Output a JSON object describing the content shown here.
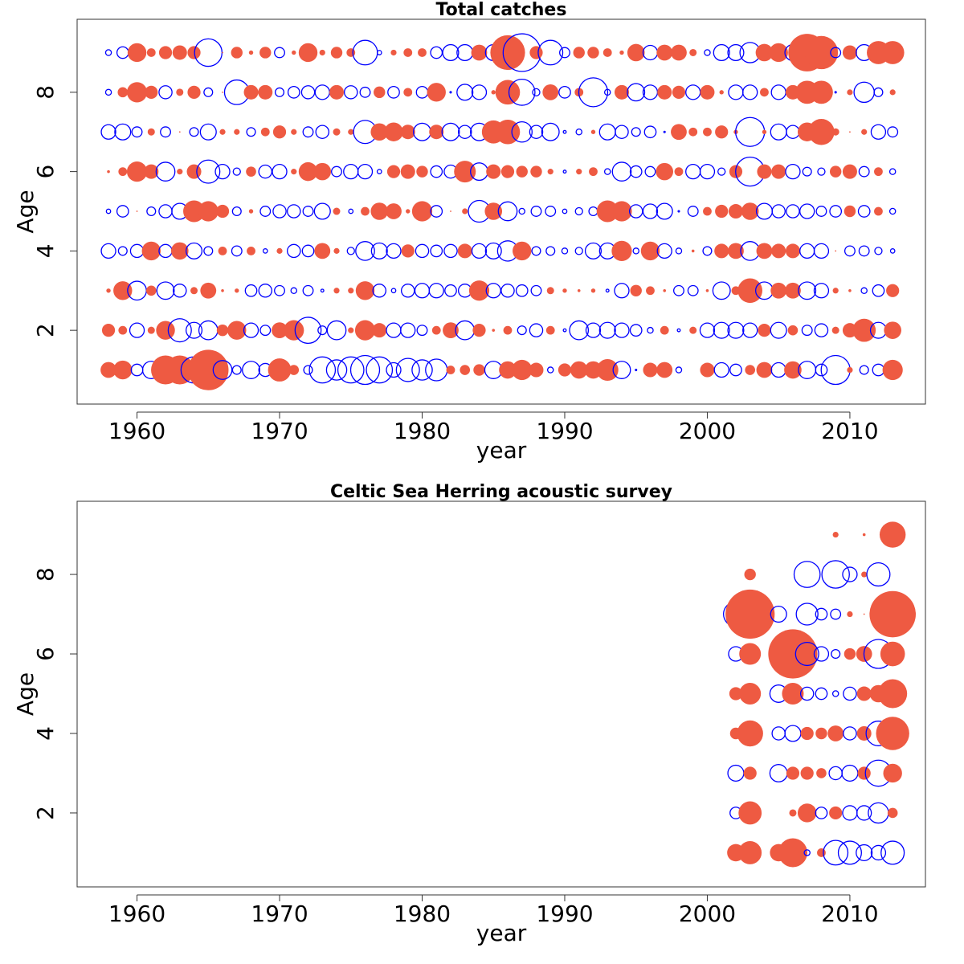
{
  "chart_data": [
    {
      "type": "bubble",
      "title": "Total catches",
      "x_label": "year",
      "y_label": "Age",
      "positive_color": "#ee5a42",
      "negative_color": "#0000ff",
      "xlim": [
        1955.8,
        2015.3
      ],
      "ylim": [
        0.14,
        9.84
      ],
      "xticks": [
        1960,
        1970,
        1980,
        1990,
        2000,
        2010
      ],
      "yticks": [
        2,
        4,
        6,
        8
      ],
      "x": [
        1958,
        1959,
        1960,
        1961,
        1962,
        1963,
        1964,
        1965,
        1966,
        1967,
        1968,
        1969,
        1970,
        1971,
        1972,
        1973,
        1974,
        1975,
        1976,
        1977,
        1978,
        1979,
        1980,
        1981,
        1982,
        1983,
        1984,
        1985,
        1986,
        1987,
        1988,
        1989,
        1990,
        1991,
        1992,
        1993,
        1994,
        1995,
        1996,
        1997,
        1998,
        1999,
        2000,
        2001,
        2002,
        2003,
        2004,
        2005,
        2006,
        2007,
        2008,
        2009,
        2010,
        2011,
        2012,
        2013
      ],
      "y": [
        1,
        2,
        3,
        4,
        5,
        6,
        7,
        8,
        9
      ],
      "values": [
        [
          1.1,
          1.3,
          -0.8,
          -1.2,
          2.0,
          2.0,
          -1.8,
          2.8,
          -1.3,
          -0.6,
          -1.2,
          -0.9,
          1.6,
          0.7,
          -0.6,
          -1.8,
          -1.4,
          -1.8,
          -2.0,
          -1.8,
          -1.0,
          -1.6,
          -1.4,
          -1.5,
          0.6,
          0.7,
          0.8,
          -1.2,
          1.2,
          1.4,
          1.0,
          -0.4,
          0.9,
          1.2,
          1.2,
          1.5,
          -1.2,
          -0.1,
          1.0,
          1.1,
          -0.4,
          0.0,
          1.0,
          -1.0,
          -0.8,
          0.7,
          1.1,
          -1.0,
          1.2,
          -1.2,
          -0.8,
          -2.0,
          0.4,
          -0.6,
          -0.8,
          1.4
        ],
        [
          0.9,
          0.6,
          -1.0,
          0.5,
          1.3,
          -1.6,
          -1.1,
          -1.3,
          0.8,
          1.3,
          -1.0,
          -0.7,
          1.1,
          1.4,
          -1.8,
          -0.6,
          -1.3,
          0.4,
          1.4,
          1.0,
          -1.0,
          -1.0,
          -0.7,
          0.6,
          1.1,
          -1.3,
          0.9,
          0.2,
          0.6,
          -0.6,
          -0.9,
          0.6,
          -0.2,
          -1.3,
          -1.0,
          -1.1,
          -1.0,
          -0.8,
          -0.4,
          0.6,
          -0.2,
          0.5,
          -1.0,
          -1.1,
          -1.1,
          -1.0,
          0.9,
          -1.1,
          0.7,
          -0.7,
          -0.9,
          0.5,
          1.0,
          1.6,
          -1.1,
          1.2
        ],
        [
          0.3,
          1.3,
          -1.3,
          0.7,
          -1.2,
          -0.9,
          0.5,
          1.1,
          0.2,
          0.3,
          -0.8,
          -0.9,
          -0.7,
          -0.4,
          -0.7,
          -0.2,
          0.4,
          0.4,
          1.3,
          -0.9,
          -0.3,
          -0.9,
          -1.0,
          -1.0,
          -0.8,
          -0.9,
          1.4,
          -1.0,
          -0.9,
          -0.8,
          -0.7,
          0.5,
          0.3,
          0.2,
          0.3,
          -0.2,
          -1.0,
          0.8,
          0.6,
          0.2,
          -0.7,
          -0.7,
          0.2,
          -1.2,
          0.6,
          1.7,
          -1.2,
          1.1,
          1.1,
          -1.2,
          -1.0,
          0.4,
          0.2,
          -0.4,
          -0.8,
          0.9
        ],
        [
          -1.0,
          -0.6,
          -0.9,
          1.3,
          -0.9,
          1.2,
          -1.1,
          -0.6,
          0.6,
          -0.7,
          0.6,
          -0.3,
          0.4,
          -0.9,
          -0.8,
          1.1,
          0.4,
          -0.5,
          -1.3,
          -1.1,
          -1.0,
          0.9,
          -0.9,
          -0.8,
          -0.9,
          1.0,
          -1.0,
          -1.1,
          -1.4,
          1.3,
          -0.6,
          -0.6,
          -0.4,
          -0.5,
          -1.1,
          -1.1,
          1.4,
          -0.4,
          1.3,
          -1.0,
          -0.4,
          0.2,
          -0.6,
          1.0,
          1.1,
          -1.3,
          1.1,
          1.0,
          1.0,
          -1.0,
          -1.0,
          0.1,
          -0.7,
          -0.7,
          -0.5,
          -0.3
        ],
        [
          -0.3,
          -0.8,
          0.1,
          -0.6,
          -0.9,
          -1.1,
          1.5,
          1.4,
          0.9,
          -0.6,
          0.3,
          -0.7,
          -0.9,
          -0.9,
          -0.7,
          -1.1,
          0.5,
          -0.3,
          0.6,
          1.2,
          1.1,
          0.3,
          1.4,
          -0.8,
          0.1,
          0.4,
          -1.5,
          1.2,
          -1.3,
          -0.4,
          -0.7,
          -0.7,
          -0.3,
          -0.5,
          -0.6,
          1.5,
          1.4,
          -0.9,
          -1.0,
          -1.1,
          -0.1,
          -0.7,
          0.6,
          0.9,
          1.0,
          1.2,
          -1.1,
          -0.9,
          -0.9,
          -1.0,
          -0.7,
          -0.8,
          0.8,
          -0.8,
          0.6,
          -0.4
        ],
        [
          0.2,
          0.6,
          1.4,
          1.0,
          -1.3,
          0.4,
          1.0,
          -1.6,
          -1.0,
          -0.5,
          0.7,
          -0.9,
          -1.0,
          0.4,
          1.3,
          1.2,
          -0.7,
          -1.0,
          -1.0,
          -0.3,
          0.9,
          1.0,
          0.8,
          -0.8,
          -0.9,
          1.5,
          -1.2,
          1.0,
          0.9,
          0.8,
          0.8,
          0.4,
          -0.2,
          0.4,
          0.6,
          -0.4,
          -1.3,
          -0.8,
          -0.7,
          1.2,
          0.6,
          -1.0,
          -1.0,
          -0.5,
          0.9,
          -2.0,
          1.0,
          1.0,
          -1.0,
          -0.6,
          -0.5,
          0.8,
          1.0,
          -0.7,
          0.6,
          -0.4
        ],
        [
          -1.0,
          -1.1,
          -0.7,
          0.5,
          -0.7,
          0.1,
          -0.6,
          -1.1,
          0.4,
          0.4,
          -0.6,
          0.6,
          0.9,
          0.4,
          -0.7,
          -0.9,
          0.5,
          0.4,
          -1.6,
          1.2,
          1.3,
          1.0,
          -1.2,
          1.0,
          -1.2,
          -0.9,
          -1.2,
          1.6,
          1.7,
          -1.4,
          -0.9,
          -1.2,
          -0.2,
          -0.4,
          0.3,
          -1.1,
          -0.9,
          -0.6,
          -0.8,
          -0.1,
          1.1,
          0.6,
          0.6,
          0.9,
          0.3,
          -2.0,
          0.3,
          -1.1,
          -0.9,
          1.3,
          1.8,
          0.5,
          0.1,
          0.4,
          -1.0,
          -0.7
        ],
        [
          -0.4,
          0.7,
          1.4,
          0.9,
          -0.9,
          0.5,
          0.9,
          -0.6,
          0.1,
          -1.7,
          1.0,
          1.0,
          -0.6,
          -0.8,
          -0.9,
          -1.0,
          1.0,
          -0.9,
          -0.7,
          0.8,
          -0.8,
          0.6,
          -0.8,
          1.3,
          -0.1,
          -1.1,
          -1.0,
          0.3,
          1.7,
          -1.8,
          -0.5,
          1.1,
          -0.8,
          0.6,
          -2.0,
          -0.4,
          1.0,
          -1.2,
          -1.0,
          1.0,
          0.9,
          -1.0,
          1.0,
          0.3,
          -1.0,
          -1.0,
          0.6,
          -1.0,
          1.0,
          1.6,
          1.6,
          -0.1,
          0.4,
          -1.4,
          -0.6,
          0.4
        ],
        [
          -0.4,
          -0.8,
          1.3,
          0.6,
          0.9,
          1.0,
          0.9,
          -1.9,
          0.1,
          0.8,
          0.3,
          0.8,
          -0.7,
          0.3,
          1.3,
          0.4,
          0.8,
          0.6,
          -1.7,
          -0.3,
          0.4,
          0.6,
          0.6,
          -0.8,
          -1.1,
          -1.1,
          1.1,
          -1.1,
          2.4,
          -2.6,
          0.9,
          -1.7,
          -0.7,
          0.8,
          0.8,
          0.6,
          0.3,
          1.2,
          -1.0,
          1.1,
          1.1,
          0.5,
          -0.4,
          -1.1,
          -1.1,
          -1.4,
          1.2,
          1.3,
          -1.1,
          2.6,
          2.3,
          -0.7,
          1.0,
          -1.1,
          1.6,
          1.6
        ]
      ]
    },
    {
      "type": "bubble",
      "title": "Celtic Sea Herring acoustic survey",
      "x_label": "year",
      "y_label": "Age",
      "positive_color": "#ee5a42",
      "negative_color": "#0000ff",
      "xlim": [
        1955.8,
        2015.3
      ],
      "ylim": [
        0.14,
        9.84
      ],
      "xticks": [
        1960,
        1970,
        1980,
        1990,
        2000,
        2010
      ],
      "yticks": [
        2,
        4,
        6,
        8
      ],
      "x": [
        2002,
        2003,
        2004,
        2005,
        2006,
        2007,
        2008,
        2009,
        2010,
        2011,
        2012,
        2013
      ],
      "y": [
        1,
        2,
        3,
        4,
        5,
        6,
        7,
        8,
        9
      ],
      "values": [
        [
          1.2,
          1.6,
          null,
          1.2,
          2.0,
          -0.4,
          0.6,
          -1.7,
          -1.6,
          -1.1,
          -1.0,
          -1.6
        ],
        [
          -0.8,
          1.6,
          null,
          null,
          0.5,
          1.3,
          -0.8,
          0.9,
          -1.0,
          -1.0,
          -1.4,
          0.7
        ],
        [
          -1.1,
          0.9,
          null,
          -1.2,
          0.9,
          0.9,
          0.7,
          -0.9,
          -1.1,
          0.9,
          -1.8,
          1.3
        ],
        [
          0.8,
          1.8,
          null,
          -0.9,
          -1.1,
          0.9,
          0.8,
          1.1,
          -0.9,
          1.0,
          -1.7,
          2.3
        ],
        [
          0.9,
          1.5,
          null,
          -1.2,
          1.5,
          -0.9,
          -0.8,
          -0.4,
          -0.9,
          1.0,
          1.2,
          2.0
        ],
        [
          -1.0,
          1.5,
          null,
          -1.2,
          3.4,
          -1.6,
          -1.0,
          -0.6,
          0.8,
          1.1,
          -2.0,
          1.7
        ],
        [
          -1.7,
          3.4,
          null,
          -1.1,
          null,
          -1.5,
          -0.8,
          -0.7,
          0.4,
          0.1,
          -1.1,
          3.2
        ],
        [
          null,
          0.8,
          null,
          null,
          null,
          -1.8,
          null,
          -1.9,
          -1.0,
          0.4,
          -1.6,
          null
        ],
        [
          null,
          null,
          null,
          null,
          null,
          null,
          null,
          0.4,
          null,
          0.2,
          null,
          1.8
        ]
      ]
    }
  ]
}
